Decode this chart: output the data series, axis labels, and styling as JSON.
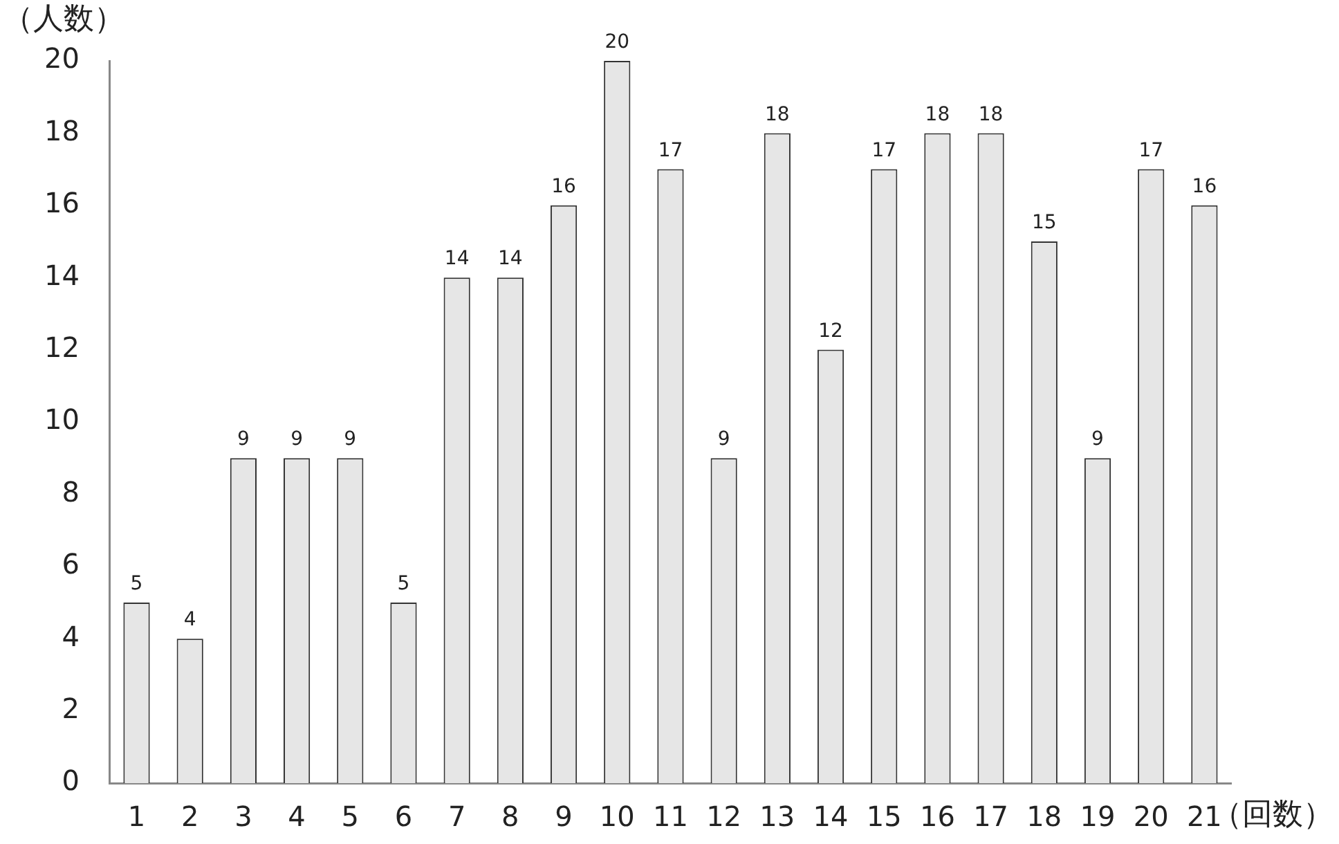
{
  "chart_data": {
    "type": "bar",
    "ylabel": "（人数）",
    "xlabel": "（回数）",
    "categories": [
      "1",
      "2",
      "3",
      "4",
      "5",
      "6",
      "7",
      "8",
      "9",
      "10",
      "11",
      "12",
      "13",
      "14",
      "15",
      "16",
      "17",
      "18",
      "19",
      "20",
      "21"
    ],
    "values": [
      5,
      4,
      9,
      9,
      9,
      5,
      14,
      14,
      16,
      20,
      17,
      9,
      18,
      12,
      17,
      18,
      18,
      15,
      9,
      17,
      16
    ],
    "color": "#e6e6e6",
    "ylim": [
      0,
      20
    ],
    "yticks": [
      0,
      2,
      4,
      6,
      8,
      10,
      12,
      14,
      16,
      18,
      20
    ],
    "grid": false,
    "legend": false,
    "data_labels": true
  }
}
